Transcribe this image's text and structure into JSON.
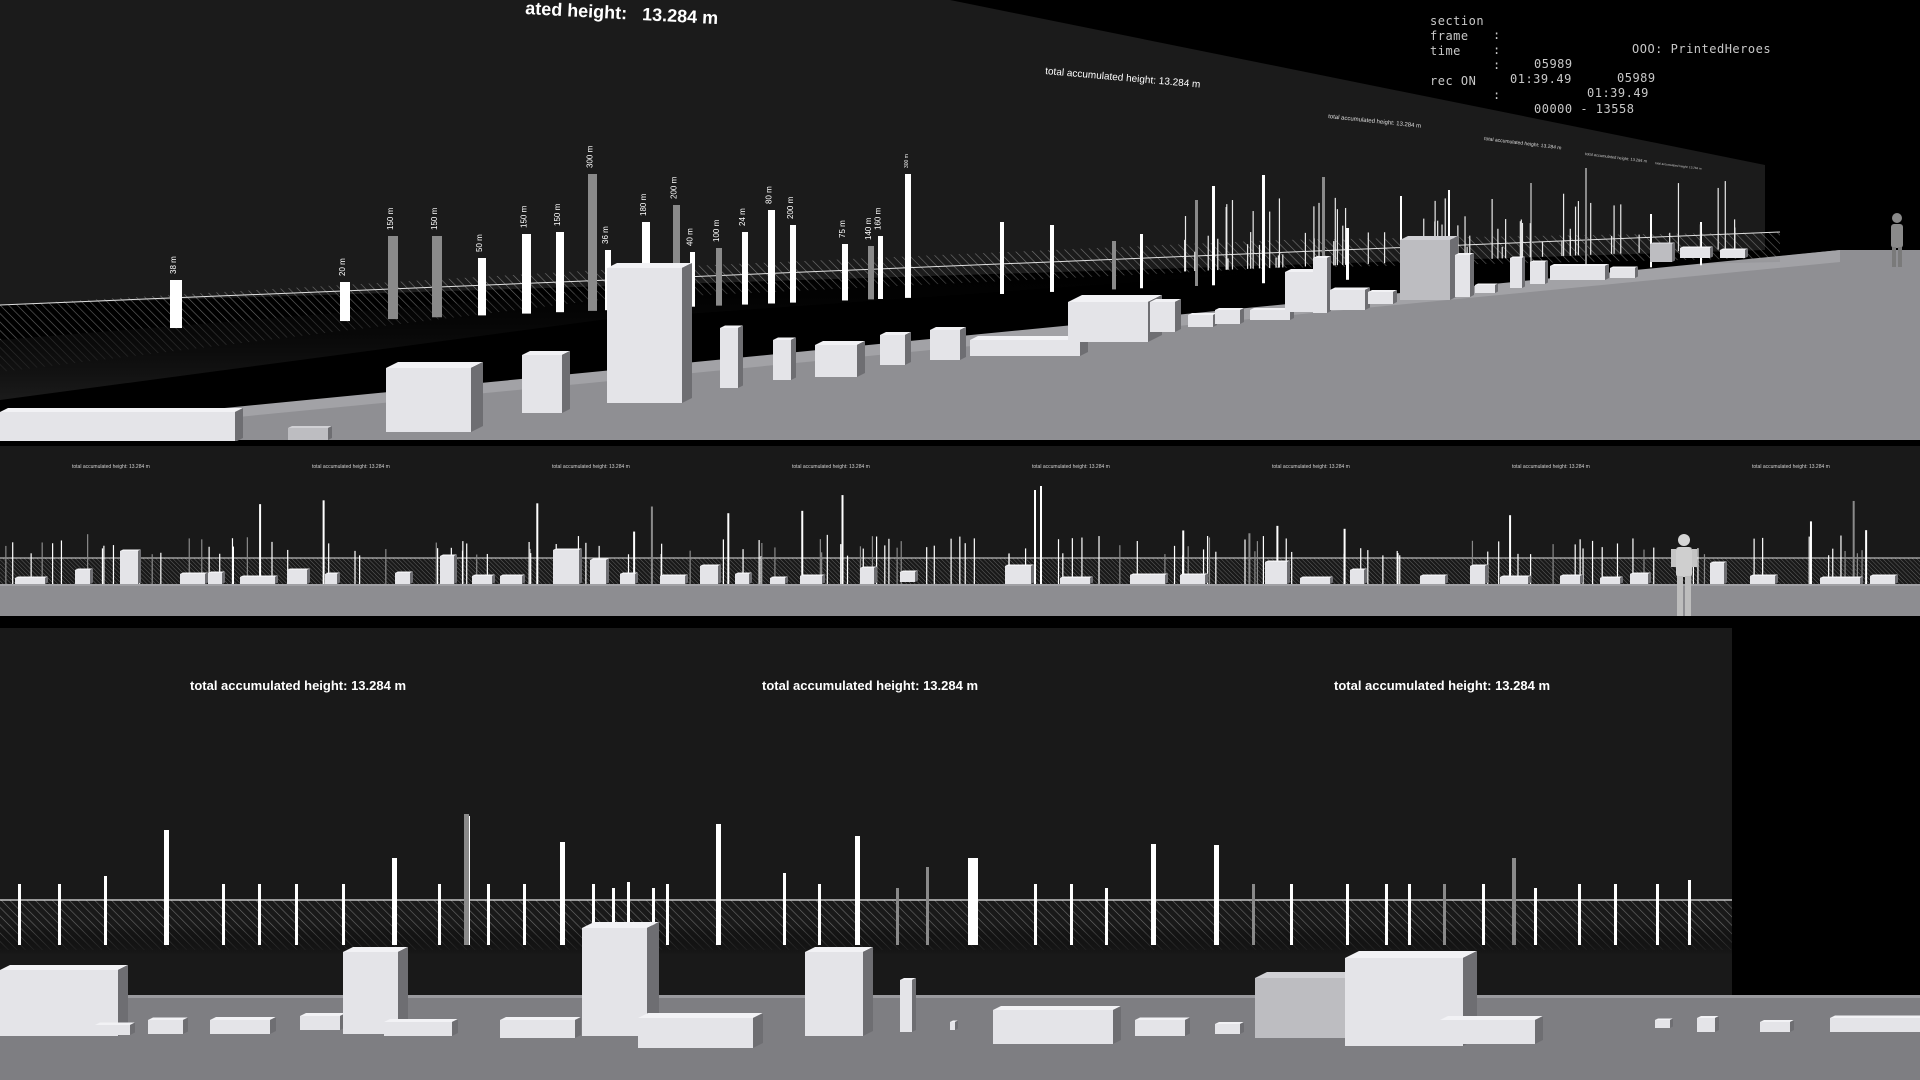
{
  "hud": {
    "section_label": "section",
    "section_value": "OOO: PrintedHeroes",
    "frame_label": "frame",
    "frame_a": "05989",
    "frame_b": "05989",
    "time_label": "time",
    "time_a": "01:39.49",
    "time_b": "01:39.49",
    "rec_label": "rec ON",
    "rec_value": "00000 - 13558"
  },
  "panel_top": {
    "height_label_partial": "ated height:",
    "height_value": "13.284 m",
    "label_2": "total accumulated height:  13.284 m",
    "label_small": "total accumulated height:  13.284 m",
    "bar_labels": [
      "38 m",
      "20 m",
      "150 m",
      "150 m",
      "50 m",
      "150 m",
      "150 m",
      "300 m",
      "36 m",
      "180 m",
      "200 m",
      "40 m",
      "100 m",
      "24 m",
      "80 m",
      "200 m",
      "75 m",
      "140 m",
      "160 m",
      "300 m"
    ]
  },
  "panel_mid": {
    "label": "total accumulated height:  13.284 m"
  },
  "panel_bottom": {
    "labels": [
      "total accumulated height:  13.284 m",
      "total accumulated height:  13.284 m",
      "total accumulated height:  13.284 m"
    ]
  },
  "colors": {
    "wall": "#1b1b1b",
    "floor": "#8d8d91",
    "block_light": "#e6e6ea",
    "block_dark": "#707074",
    "bar": "#ffffff",
    "bar_gray": "#8a8a8a",
    "hud_text": "#c8c8c8"
  }
}
